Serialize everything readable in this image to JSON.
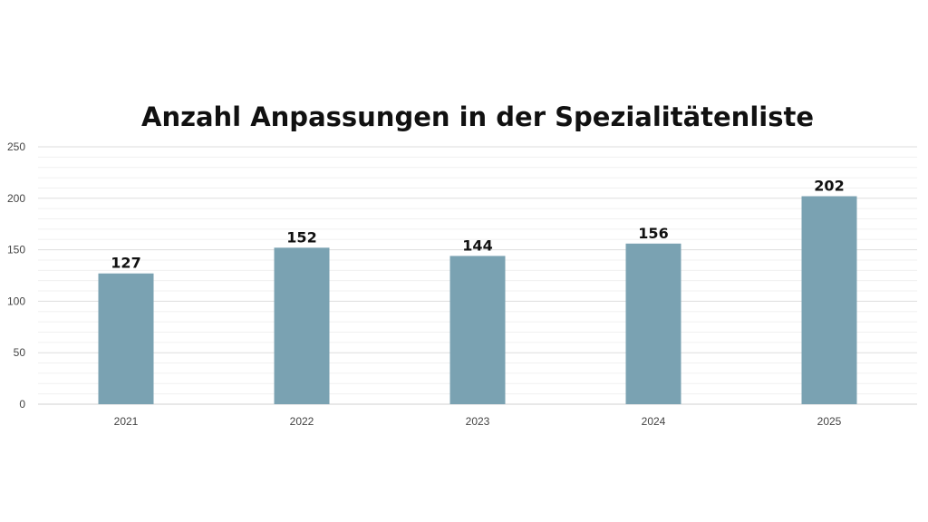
{
  "chart_data": {
    "type": "bar",
    "title": "Anzahl Anpassungen in der Spezialitätenliste",
    "categories": [
      "2021",
      "2022",
      "2023",
      "2024",
      "2025"
    ],
    "values": [
      127,
      152,
      144,
      156,
      202
    ],
    "xlabel": "",
    "ylabel": "",
    "ylim": [
      0,
      250
    ],
    "yticks": [
      0,
      50,
      100,
      150,
      200,
      250
    ],
    "grid": true,
    "legend": "none",
    "bar_color": "#7aa2b2",
    "data_labels": true
  }
}
